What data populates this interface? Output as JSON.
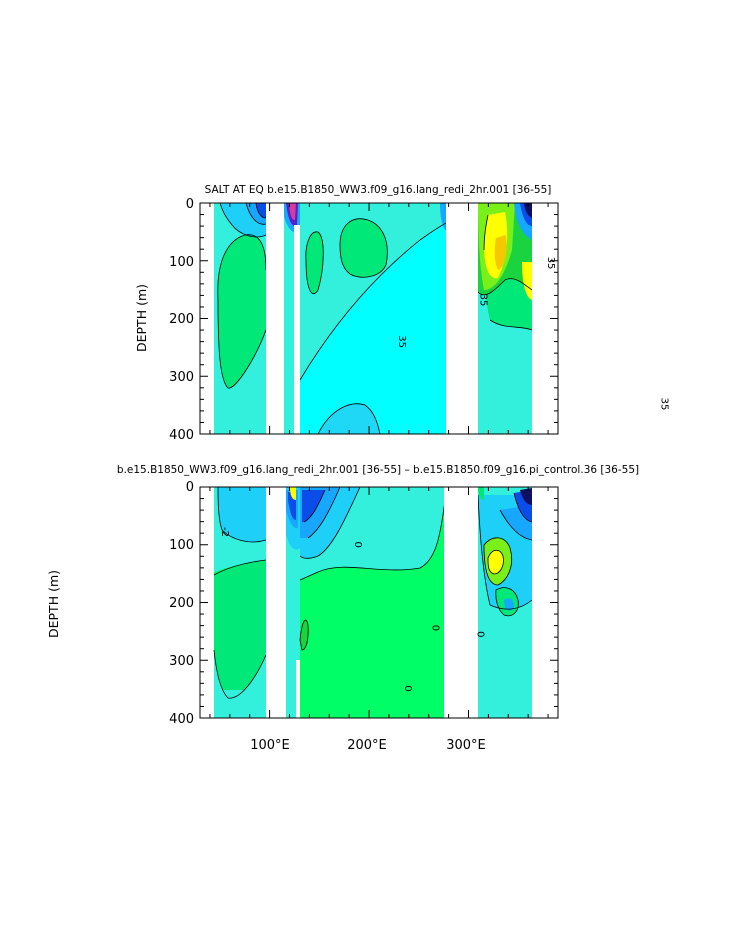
{
  "chart_data": [
    {
      "type": "heatmap",
      "title": "SALT AT EQ  b.e15.B1850_WW3.f09_g16.lang_redi_2hr.001  [36-55]",
      "ylabel": "DEPTH (m)",
      "xlabel": "",
      "xlim": [
        30,
        390
      ],
      "ylim": [
        400,
        0
      ],
      "yticks": [
        "0",
        "100",
        "200",
        "300",
        "400"
      ],
      "contour_labels": [
        {
          "text": "35",
          "x": 380,
          "y": 104
        },
        {
          "text": "35",
          "x": 312,
          "y": 168
        },
        {
          "text": "35",
          "x": 230,
          "y": 240
        },
        {
          "text": "35",
          "x": 494,
          "y": 348
        }
      ],
      "land_gaps_lon": [
        [
          97,
          117
        ],
        [
          283,
          313
        ]
      ]
    },
    {
      "type": "heatmap",
      "title": "b.e15.B1850_WW3.f09_g16.lang_redi_2hr.001 [36-55] – b.e15.B1850.f09_g16.pi_control.36 [36-55]",
      "ylabel": "DEPTH (m)",
      "xlabel": "",
      "xlim": [
        30,
        390
      ],
      "ylim": [
        400,
        0
      ],
      "yticks": [
        "0",
        "100",
        "200",
        "300",
        "400"
      ],
      "xticks": [
        "100°E",
        "200°E",
        "300°E"
      ],
      "contour_labels": [
        {
          "text": "-2",
          "x": 52,
          "y": 78
        },
        {
          "text": "0",
          "x": 186,
          "y": 100
        },
        {
          "text": "0",
          "x": 264,
          "y": 244
        },
        {
          "text": "0",
          "x": 309,
          "y": 255
        },
        {
          "text": "0",
          "x": 236,
          "y": 349
        }
      ],
      "land_gaps_lon": [
        [
          97,
          117
        ],
        [
          283,
          313
        ]
      ]
    }
  ]
}
